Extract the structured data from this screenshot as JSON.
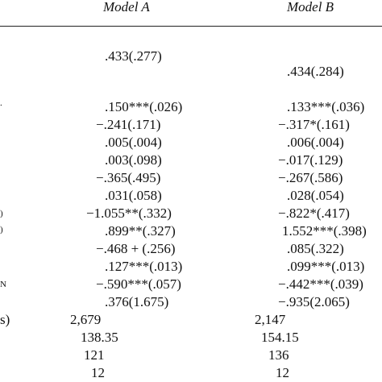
{
  "header": {
    "model_a": "Model A",
    "model_b": "Model B"
  },
  "row_label_fragments": {
    "r5": ".",
    "r11": ")",
    "r12": ")",
    "r16": "N",
    "r18": "s)"
  },
  "model_a": {
    "r1": ".433(.277)",
    "r5": ".150***(.026)",
    "r6": "−.241(.171)",
    "r7": ".005(.004)",
    "r8": ".003(.098)",
    "r9": "−.365(.495)",
    "r10": ".031(.058)",
    "r11": "−1.055**(.332)",
    "r12": ".899**(.327)",
    "r13": "−.468 + (.256)",
    "r14": ".127***(.013)",
    "r15": "−.590***(.057)",
    "r16": ".376(1.675)",
    "r17": "2,679",
    "r18": "138.35",
    "r19": "121",
    "r20": "12"
  },
  "model_b": {
    "r2": ".434(.284)",
    "r5": ".133***(.036)",
    "r6": "−.317*(.161)",
    "r7": ".006(.004)",
    "r8": "−.017(.129)",
    "r9": "−.267(.586)",
    "r10": ".028(.054)",
    "r11": "−.822*(.417)",
    "r12": "1.552***(.398)",
    "r13": ".085(.322)",
    "r14": ".099***(.013)",
    "r15": "−.442***(.039)",
    "r16": "−.935(2.065)",
    "r17": "2,147",
    "r18": "154.15",
    "r19": "136",
    "r20": "12"
  }
}
